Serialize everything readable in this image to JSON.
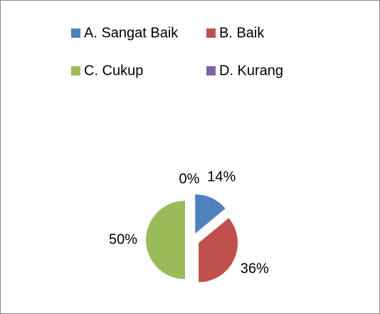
{
  "chart_data": {
    "type": "pie",
    "categories": [
      "A. Sangat Baik",
      "B. Baik",
      "C. Cukup",
      "D. Kurang"
    ],
    "values": [
      14,
      36,
      50,
      0
    ],
    "value_labels": [
      "14%",
      "36%",
      "50%",
      "0%"
    ],
    "colors": [
      "#4f81bd",
      "#c0504d",
      "#9bbb59",
      "#8064a2"
    ],
    "legend": "top",
    "exploded": true
  }
}
